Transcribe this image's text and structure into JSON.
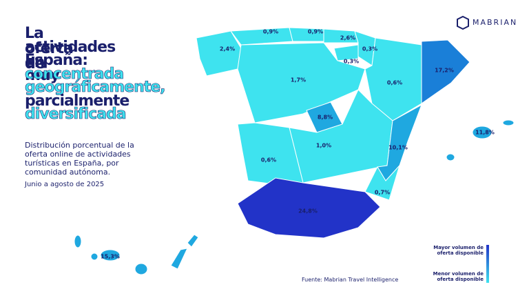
{
  "header": {
    "title_lines": [
      "La oferta de",
      "actividades en",
      "España: muy",
      "concentrada",
      "geográficamente,",
      "parcialmente",
      "diversificada"
    ],
    "subtitle": "Distribución porcentual de la oferta online de actividades turísticas en España, por comunidad autónoma.",
    "period": "Junio a agosto de 2025",
    "logo": "MABRIAN"
  },
  "regions": [
    {
      "value": "2,4%"
    },
    {
      "value": "0,9%"
    },
    {
      "value": "0,9%"
    },
    {
      "value": "2,6%"
    },
    {
      "value": "0,3%"
    },
    {
      "value": "0,3%"
    },
    {
      "value": "17,2%"
    },
    {
      "value": "1,7%"
    },
    {
      "value": "0,6%"
    },
    {
      "value": "8,8%"
    },
    {
      "value": "11,8%"
    },
    {
      "value": "1,0%"
    },
    {
      "value": "10,1%"
    },
    {
      "value": "0,6%"
    },
    {
      "value": "0,7%"
    },
    {
      "value": "24,8%"
    },
    {
      "value": "15,3%"
    }
  ],
  "legend": {
    "high": "Mayor volumen de oferta disponible",
    "low": "Menor volumen de oferta disponible"
  },
  "source": "Fuente: Mabrian Travel Intelligence"
}
